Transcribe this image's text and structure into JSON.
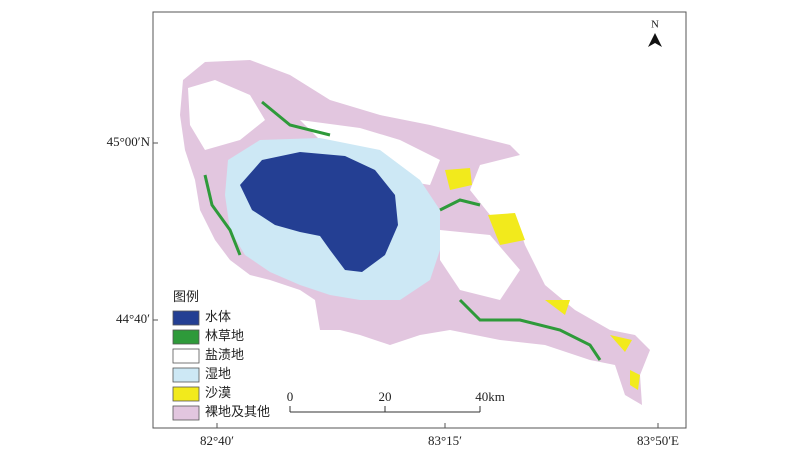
{
  "map": {
    "north": "N",
    "lat_labels": [
      "45°00′N",
      "44°40′"
    ],
    "lon_labels": [
      "82°40′",
      "83°15′",
      "83°50′E"
    ],
    "legend": {
      "title": "图例",
      "items": [
        {
          "label": "水体",
          "color": "#243f93"
        },
        {
          "label": "林草地",
          "color": "#2e9a3a"
        },
        {
          "label": "盐渍地",
          "color": "#ffffff"
        },
        {
          "label": "湿地",
          "color": "#cde8f5"
        },
        {
          "label": "沙漠",
          "color": "#f2ea1c"
        },
        {
          "label": "裸地及其他",
          "color": "#e2c6df"
        }
      ]
    },
    "scale_bar": {
      "labels": [
        "0",
        "20",
        "40km"
      ]
    }
  }
}
